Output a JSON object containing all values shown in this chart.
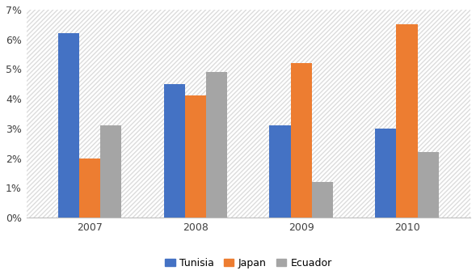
{
  "years": [
    2007,
    2008,
    2009,
    2010
  ],
  "series": {
    "Tunisia": [
      0.062,
      0.045,
      0.031,
      0.03
    ],
    "Japan": [
      0.02,
      0.041,
      0.052,
      0.065
    ],
    "Ecuador": [
      0.031,
      0.049,
      0.012,
      0.022
    ]
  },
  "colors": {
    "Tunisia": "#4472C4",
    "Japan": "#ED7D31",
    "Ecuador": "#A5A5A5"
  },
  "ylim": [
    0,
    0.07
  ],
  "yticks": [
    0.0,
    0.01,
    0.02,
    0.03,
    0.04,
    0.05,
    0.06,
    0.07
  ],
  "ytick_labels": [
    "0%",
    "1%",
    "2%",
    "3%",
    "4%",
    "5%",
    "6%",
    "7%"
  ],
  "bar_width": 0.2,
  "legend_labels": [
    "Tunisia",
    "Japan",
    "Ecuador"
  ],
  "background_color": "#FFFFFF",
  "grid_color": "#D0D0D0",
  "hatch_pattern": "///",
  "figsize": [
    5.89,
    3.45
  ],
  "dpi": 100
}
